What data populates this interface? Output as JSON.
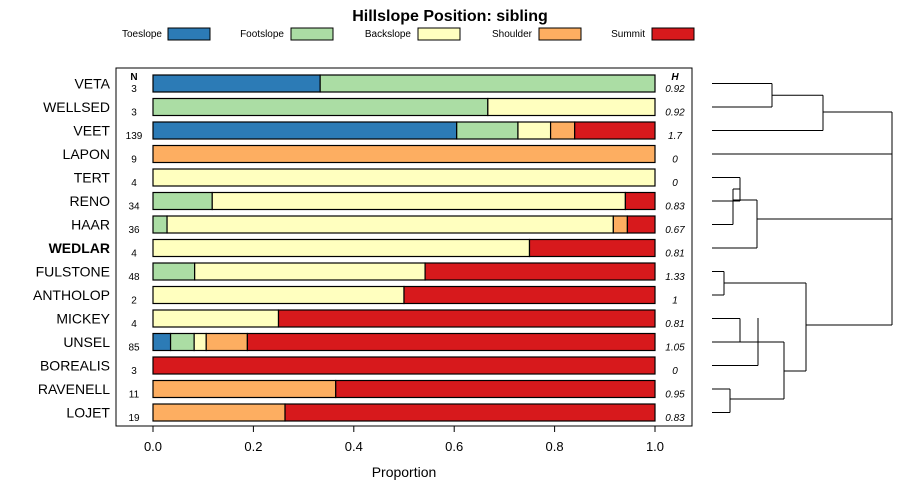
{
  "chart_data": {
    "type": "bar",
    "stacked": true,
    "orientation": "horizontal",
    "title": "Hillslope Position: sibling",
    "xlabel": "Proportion",
    "xlim": [
      0,
      1
    ],
    "xticks": [
      "0.0",
      "0.2",
      "0.4",
      "0.6",
      "0.8",
      "1.0"
    ],
    "n_header": "N",
    "h_header": "H",
    "legend_position": "top",
    "series": [
      {
        "name": "Toeslope",
        "color": "#2c7bb6"
      },
      {
        "name": "Footslope",
        "color": "#abdda4"
      },
      {
        "name": "Backslope",
        "color": "#ffffbf"
      },
      {
        "name": "Shoulder",
        "color": "#fdae61"
      },
      {
        "name": "Summit",
        "color": "#d7191c"
      }
    ],
    "rows": [
      {
        "label": "VETA",
        "n": "3",
        "h": "0.92",
        "bold": false,
        "values": [
          0.333,
          0.667,
          0,
          0,
          0
        ]
      },
      {
        "label": "WELLSED",
        "n": "3",
        "h": "0.92",
        "bold": false,
        "values": [
          0,
          0.667,
          0.333,
          0,
          0
        ]
      },
      {
        "label": "VEET",
        "n": "139",
        "h": "1.7",
        "bold": false,
        "values": [
          0.605,
          0.122,
          0.065,
          0.048,
          0.16
        ]
      },
      {
        "label": "LAPON",
        "n": "9",
        "h": "0",
        "bold": false,
        "values": [
          0,
          0,
          0,
          1,
          0
        ]
      },
      {
        "label": "TERT",
        "n": "4",
        "h": "0",
        "bold": false,
        "values": [
          0,
          0,
          1,
          0,
          0
        ]
      },
      {
        "label": "RENO",
        "n": "34",
        "h": "0.83",
        "bold": false,
        "values": [
          0,
          0.118,
          0.823,
          0,
          0.059
        ]
      },
      {
        "label": "HAAR",
        "n": "36",
        "h": "0.67",
        "bold": false,
        "values": [
          0,
          0.028,
          0.889,
          0.028,
          0.055
        ]
      },
      {
        "label": "WEDLAR",
        "n": "4",
        "h": "0.81",
        "bold": true,
        "values": [
          0,
          0,
          0.75,
          0,
          0.25
        ]
      },
      {
        "label": "FULSTONE",
        "n": "48",
        "h": "1.33",
        "bold": false,
        "values": [
          0,
          0.083,
          0.459,
          0,
          0.458
        ]
      },
      {
        "label": "ANTHOLOP",
        "n": "2",
        "h": "1",
        "bold": false,
        "values": [
          0,
          0,
          0.5,
          0,
          0.5
        ]
      },
      {
        "label": "MICKEY",
        "n": "4",
        "h": "0.81",
        "bold": false,
        "values": [
          0,
          0,
          0.25,
          0,
          0.75
        ]
      },
      {
        "label": "UNSEL",
        "n": "85",
        "h": "1.05",
        "bold": false,
        "values": [
          0.035,
          0.047,
          0.024,
          0.082,
          0.812
        ]
      },
      {
        "label": "BOREALIS",
        "n": "3",
        "h": "0",
        "bold": false,
        "values": [
          0,
          0,
          0,
          0,
          1
        ]
      },
      {
        "label": "RAVENELL",
        "n": "11",
        "h": "0.95",
        "bold": false,
        "values": [
          0,
          0,
          0,
          0.364,
          0.636
        ]
      },
      {
        "label": "LOJET",
        "n": "19",
        "h": "0.83",
        "bold": false,
        "values": [
          0,
          0,
          0,
          0.263,
          0.737
        ]
      }
    ],
    "dendrogram": {
      "description": "hierarchical clustering of rows",
      "merges": [
        {
          "left": "VETA",
          "right": "WELLSED",
          "height": 0.38
        },
        {
          "left": "VETA+WELLSED",
          "right": "VEET",
          "height": 0.62
        },
        {
          "left": "TERT",
          "right": "RENO",
          "height": 0.1
        },
        {
          "left": "TERT+RENO",
          "right": "HAAR",
          "height": 0.15
        },
        {
          "left": "TERT+RENO+HAAR",
          "right": "WEDLAR",
          "height": 0.25
        },
        {
          "left": "FULSTONE",
          "right": "ANTHOLOP",
          "height": 0.05
        },
        {
          "left": "MICKEY",
          "right": "UNSEL",
          "height": 0.13
        },
        {
          "left": "MICKEY+UNSEL",
          "right": "BOREALIS",
          "height": 0.25
        },
        {
          "left": "RAVENELL",
          "right": "LOJET",
          "height": 0.1
        },
        {
          "left": "MICKEY+UNSEL+BOREALIS",
          "right": "RAVENELL+LOJET",
          "height": 0.4
        },
        {
          "left": "FULSTONE+ANTHOLOP",
          "right": "MICKEY..LOJET",
          "height": 0.55
        },
        {
          "left": "TERT..WEDLAR",
          "right": "FULSTONE..LOJET",
          "height": 0.95
        },
        {
          "left": "VETA+WELLSED+VEET",
          "right": "LAPON",
          "height": 1.0
        },
        {
          "left": "VETA..LAPON",
          "right": "TERT..LOJET",
          "height": 1.0
        }
      ]
    }
  }
}
